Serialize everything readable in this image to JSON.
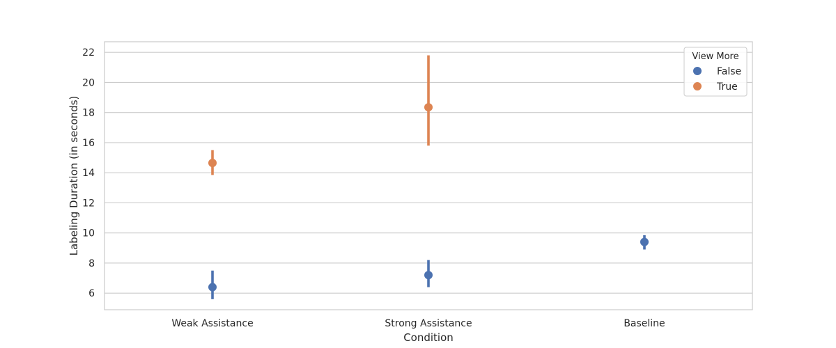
{
  "chart_data": {
    "type": "point",
    "xlabel": "Condition",
    "ylabel": "Labeling Duration (in seconds)",
    "categories": [
      "Weak Assistance",
      "Strong Assistance",
      "Baseline"
    ],
    "ylim": [
      4.9,
      22.7
    ],
    "yticks": [
      6,
      8,
      10,
      12,
      14,
      16,
      18,
      20,
      22
    ],
    "grid": "horizontal",
    "legend": {
      "title": "View More",
      "placement": "top-right"
    },
    "series": [
      {
        "name": "False",
        "color": "#4c72b0",
        "points": [
          {
            "category": "Weak Assistance",
            "mean": 6.4,
            "ci": [
              5.6,
              7.5
            ]
          },
          {
            "category": "Strong Assistance",
            "mean": 7.2,
            "ci": [
              6.4,
              8.2
            ]
          },
          {
            "category": "Baseline",
            "mean": 9.4,
            "ci": [
              8.9,
              9.85
            ]
          }
        ]
      },
      {
        "name": "True",
        "color": "#dd8452",
        "points": [
          {
            "category": "Weak Assistance",
            "mean": 14.65,
            "ci": [
              13.85,
              15.5
            ]
          },
          {
            "category": "Strong Assistance",
            "mean": 18.35,
            "ci": [
              15.8,
              21.8
            ]
          }
        ]
      }
    ]
  }
}
